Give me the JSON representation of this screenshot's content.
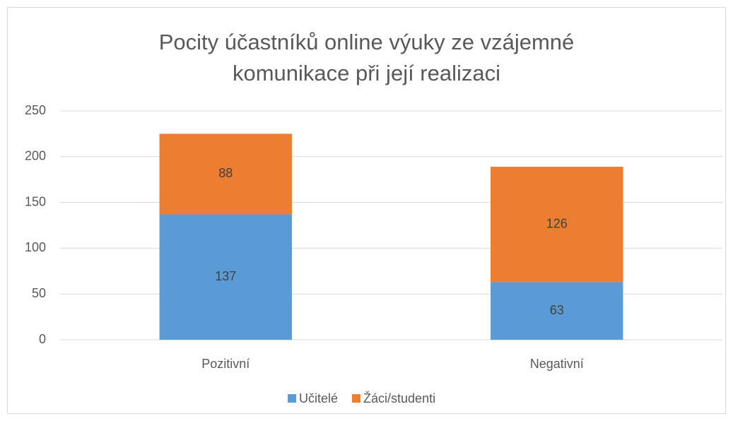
{
  "chart_data": {
    "type": "stacked_bar",
    "title": "Pocity účastníků online výuky ze vzájemné komunikace při její realizaci",
    "categories": [
      "Pozitivní",
      "Negativní"
    ],
    "series": [
      {
        "name": "Učitelé",
        "color": "#5b9bd5",
        "values": [
          137,
          63
        ]
      },
      {
        "name": "Žáci/studenti",
        "color": "#ed7d31",
        "values": [
          88,
          126
        ]
      }
    ],
    "ylim": [
      0,
      250
    ],
    "yticks": [
      0,
      50,
      100,
      150,
      200,
      250
    ],
    "grid": true,
    "legend": "bottom"
  }
}
